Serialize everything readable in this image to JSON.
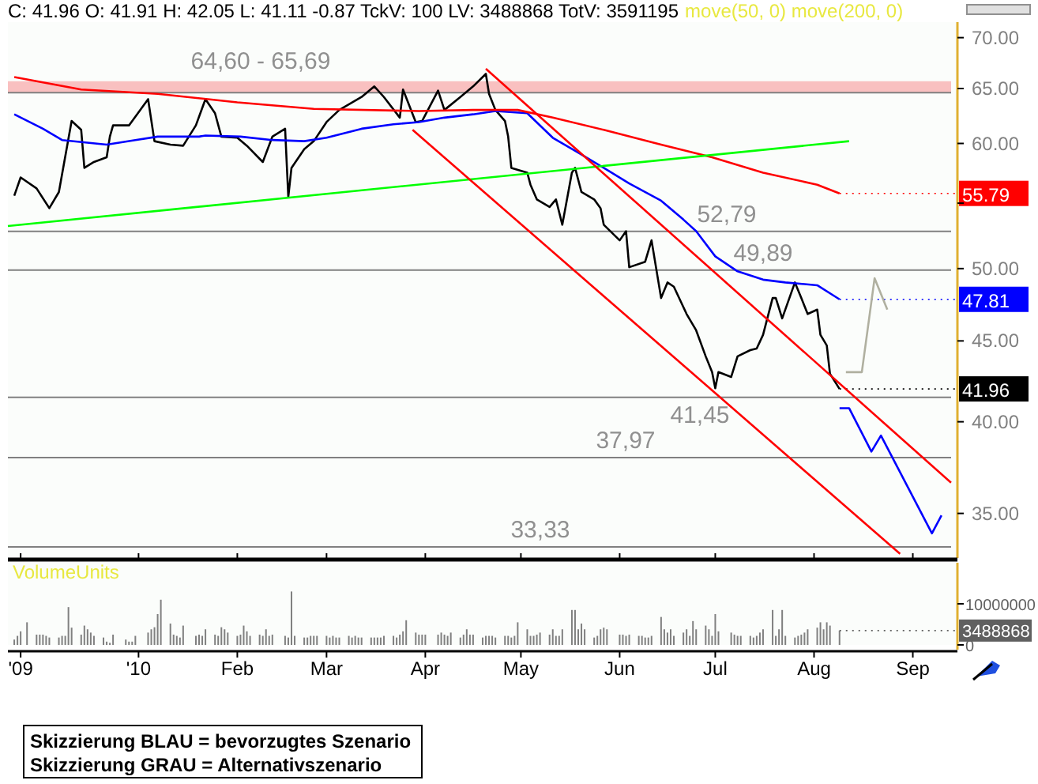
{
  "chart_data": [
    {
      "type": "line",
      "title": "C: 41.96 O: 41.91 H: 42.05 L: 41.11 -0.87 TckV: 100 LV: 3488868 TotV: 3591195",
      "annotations": [
        "move(50, 0) move(200, 0)",
        "Skizzierung BLAU = bevorzugtes Szenario",
        "Skizzierung GRAU = Alternativszenario"
      ],
      "log": "y",
      "xlim": [
        "2009-11-21",
        "2010-09-15"
      ],
      "ylim": [
        32.8,
        71.6
      ],
      "yticks": [
        {
          "value": 35,
          "label": "35.00"
        },
        {
          "value": 40,
          "label": "40.00"
        },
        {
          "value": 45,
          "label": "45.00"
        },
        {
          "value": 50,
          "label": "50.00"
        },
        {
          "value": 55,
          "label": null
        },
        {
          "value": 60,
          "label": "60.00"
        },
        {
          "value": 65,
          "label": "65.00"
        },
        {
          "value": 70,
          "label": "70.00"
        }
      ],
      "tick_labels": "y",
      "xticks": [
        {
          "value": "2009-11-25",
          "label": null
        },
        {
          "value": "2010-01-01",
          "label": null
        },
        {
          "value": "2010-02-01",
          "label": null
        },
        {
          "value": "2010-03-01",
          "label": null
        },
        {
          "value": "2010-04-01",
          "label": null
        },
        {
          "value": "2010-05-01",
          "label": null
        },
        {
          "value": "2010-06-01",
          "label": null
        },
        {
          "value": "2010-07-01",
          "label": null
        },
        {
          "value": "2010-08-01",
          "label": null
        },
        {
          "value": "2010-09-01",
          "label": null
        }
      ],
      "bands": [
        {
          "axis": "y",
          "from": 64.6,
          "to": 65.69,
          "label": "64,60 - 65,69",
          "color": "#f9c0c0"
        }
      ],
      "ref_lines": [
        {
          "axis": "y",
          "value": 52.79,
          "label": "52,79",
          "color": "#808080"
        },
        {
          "axis": "y",
          "value": 49.89,
          "label": "49,89",
          "color": "#808080"
        },
        {
          "axis": "y",
          "value": 41.45,
          "label": "41,45",
          "color": "#808080"
        },
        {
          "axis": "y",
          "value": 37.97,
          "label": "37,97",
          "color": "#808080"
        },
        {
          "axis": "y",
          "value": 33.33,
          "label": "33,33",
          "color": "#808080"
        },
        {
          "axis": "y",
          "value": 64.6,
          "color": "#808080"
        }
      ],
      "series": [
        {
          "color": "#000000",
          "x": [
            "2009-11-23",
            "2009-11-25",
            "2009-11-30",
            "2009-12-04",
            "2009-12-07",
            "2009-12-11",
            "2009-12-14",
            "2009-12-15",
            "2009-12-18",
            "2009-12-22",
            "2009-12-23",
            "2009-12-24",
            "2009-12-29",
            "2010-01-04",
            "2010-01-06",
            "2010-01-11",
            "2010-01-15",
            "2010-01-19",
            "2010-01-22",
            "2010-01-25",
            "2010-01-27",
            "2010-02-01",
            "2010-02-04",
            "2010-02-09",
            "2010-02-12",
            "2010-02-16",
            "2010-02-17",
            "2010-02-18",
            "2010-02-22",
            "2010-02-25",
            "2010-03-01",
            "2010-03-05",
            "2010-03-12",
            "2010-03-16",
            "2010-03-19",
            "2010-03-24",
            "2010-03-25",
            "2010-03-29",
            "2010-03-31",
            "2010-04-05",
            "2010-04-07",
            "2010-04-12",
            "2010-04-16",
            "2010-04-20",
            "2010-04-21",
            "2010-04-23",
            "2010-04-26",
            "2010-04-27",
            "2010-04-28",
            "2010-05-03",
            "2010-05-04",
            "2010-05-06",
            "2010-05-10",
            "2010-05-12",
            "2010-05-14",
            "2010-05-17",
            "2010-05-18",
            "2010-05-20",
            "2010-05-24",
            "2010-05-26",
            "2010-05-27",
            "2010-06-01",
            "2010-06-03",
            "2010-06-04",
            "2010-06-09",
            "2010-06-11",
            "2010-06-14",
            "2010-06-16",
            "2010-06-18",
            "2010-06-22",
            "2010-06-25",
            "2010-06-28",
            "2010-06-30",
            "2010-07-01",
            "2010-07-02",
            "2010-07-06",
            "2010-07-08",
            "2010-07-12",
            "2010-07-14",
            "2010-07-16",
            "2010-07-19",
            "2010-07-20",
            "2010-07-22",
            "2010-07-26",
            "2010-07-28",
            "2010-07-30",
            "2010-08-02",
            "2010-08-03",
            "2010-08-05",
            "2010-08-06",
            "2010-08-09"
          ],
          "values": [
            55.6,
            57.1,
            56.2,
            54.6,
            55.9,
            62.0,
            61.2,
            57.9,
            58.4,
            58.8,
            60.6,
            61.6,
            61.6,
            64.0,
            60.2,
            59.9,
            59.8,
            61.6,
            64.0,
            62.7,
            60.6,
            60.5,
            59.8,
            58.4,
            60.6,
            61.3,
            55.5,
            57.9,
            59.5,
            60.2,
            61.9,
            63.0,
            64.2,
            65.2,
            64.2,
            62.3,
            64.9,
            61.9,
            62.0,
            64.8,
            63.0,
            64.2,
            65.2,
            66.4,
            64.5,
            63.0,
            62.0,
            60.6,
            57.9,
            57.5,
            56.5,
            55.3,
            54.7,
            55.3,
            53.3,
            57.5,
            57.9,
            55.9,
            55.3,
            54.6,
            53.3,
            52.1,
            52.8,
            50.1,
            50.5,
            52.1,
            47.9,
            49.0,
            48.7,
            46.8,
            45.7,
            44.0,
            43.0,
            42.0,
            43.0,
            42.7,
            44.0,
            44.4,
            44.5,
            45.4,
            47.9,
            47.9,
            46.5,
            49.0,
            47.9,
            46.8,
            47.1,
            45.4,
            44.7,
            42.9,
            41.96
          ],
          "value_labels": [
            null,
            null,
            null,
            null,
            null,
            null,
            null,
            null,
            null,
            null,
            null,
            null,
            null,
            null,
            null,
            null,
            null,
            null,
            null,
            null,
            null,
            null,
            null,
            null,
            null,
            null,
            null,
            null,
            null,
            null,
            null,
            null,
            null,
            null,
            null,
            null,
            null,
            null,
            null,
            null,
            null,
            null,
            null,
            null,
            null,
            null,
            null,
            null,
            null,
            null,
            null,
            null,
            null,
            null,
            null,
            null,
            null,
            null,
            null,
            null,
            null,
            null,
            null,
            null,
            null,
            null,
            null,
            null,
            null,
            null,
            null,
            null,
            null,
            null,
            null,
            null,
            null,
            null,
            null,
            null,
            null,
            null,
            null,
            null,
            null,
            null,
            null,
            null,
            null,
            null,
            "41.96"
          ]
        },
        {
          "color": "#0000ff",
          "x": [
            "2009-11-23",
            "2009-12-02",
            "2009-12-08",
            "2009-12-22",
            "2009-12-31",
            "2010-01-07",
            "2010-01-20",
            "2010-01-22",
            "2010-02-02",
            "2010-02-12",
            "2010-02-22",
            "2010-03-01",
            "2010-03-12",
            "2010-03-22",
            "2010-03-30",
            "2010-04-07",
            "2010-04-16",
            "2010-04-23",
            "2010-05-03",
            "2010-05-11",
            "2010-05-19",
            "2010-05-27",
            "2010-06-04",
            "2010-06-14",
            "2010-06-21",
            "2010-06-25",
            "2010-07-01",
            "2010-07-08",
            "2010-07-16",
            "2010-07-23",
            "2010-08-02",
            "2010-08-09"
          ],
          "values": [
            62.6,
            61.3,
            60.3,
            59.9,
            60.3,
            60.6,
            60.6,
            60.7,
            60.6,
            60.3,
            60.2,
            60.5,
            61.3,
            61.7,
            61.9,
            62.3,
            62.6,
            62.9,
            62.7,
            60.5,
            59.2,
            57.9,
            56.6,
            55.2,
            53.7,
            52.8,
            50.9,
            49.8,
            49.2,
            49.0,
            48.8,
            47.81
          ],
          "value_labels": [
            null,
            null,
            null,
            null,
            null,
            null,
            null,
            null,
            null,
            null,
            null,
            null,
            null,
            null,
            null,
            null,
            null,
            null,
            null,
            null,
            null,
            null,
            null,
            null,
            null,
            null,
            null,
            null,
            null,
            null,
            null,
            "47.81"
          ]
        },
        {
          "color": "#ff0000",
          "x": [
            "2009-11-23",
            "2009-12-14",
            "2010-01-07",
            "2010-02-01",
            "2010-02-25",
            "2010-03-30",
            "2010-04-16",
            "2010-04-30",
            "2010-05-11",
            "2010-05-27",
            "2010-06-14",
            "2010-06-30",
            "2010-07-16",
            "2010-08-02",
            "2010-08-09"
          ],
          "values": [
            66.1,
            64.9,
            64.5,
            63.7,
            63.1,
            62.9,
            63.0,
            63.0,
            62.3,
            61.2,
            59.9,
            58.8,
            57.5,
            56.5,
            55.79
          ],
          "value_labels": [
            null,
            null,
            null,
            null,
            null,
            null,
            null,
            null,
            null,
            null,
            null,
            null,
            null,
            null,
            "55.79"
          ]
        },
        {
          "color": "#00ff00",
          "x": [
            "2009-11-21",
            "2010-08-12"
          ],
          "values": [
            53.2,
            60.2
          ]
        },
        {
          "color": "#ff0000",
          "x": [
            "2010-04-20",
            "2010-09-13"
          ],
          "values": [
            66.9,
            36.6
          ]
        },
        {
          "color": "#ff0000",
          "x": [
            "2010-03-28",
            "2010-08-28"
          ],
          "values": [
            61.2,
            33.0
          ]
        },
        {
          "color": "#0000ff",
          "x": [
            "2010-08-09",
            "2010-08-12",
            "2010-08-19",
            "2010-08-22",
            "2010-09-07",
            "2010-09-10"
          ],
          "values": [
            40.8,
            40.8,
            38.3,
            39.2,
            34.0,
            34.9
          ]
        },
        {
          "color": "#b0b0a0",
          "x": [
            "2010-08-11",
            "2010-08-16",
            "2010-08-20",
            "2010-08-24"
          ],
          "values": [
            43.0,
            43.0,
            49.3,
            47.1
          ]
        }
      ]
    },
    {
      "type": "bar",
      "title": "VolumeUnits",
      "color": "#808080",
      "xlim": [
        "2009-11-21",
        "2010-09-15"
      ],
      "xticks": [
        {
          "value": "2009-11-25",
          "label": "'09"
        },
        {
          "value": "2010-01-01",
          "label": "'10"
        },
        {
          "value": "2010-02-01",
          "label": "Feb"
        },
        {
          "value": "2010-03-01",
          "label": "Mar"
        },
        {
          "value": "2010-04-01",
          "label": "Apr"
        },
        {
          "value": "2010-05-01",
          "label": "May"
        },
        {
          "value": "2010-06-01",
          "label": "Jun"
        },
        {
          "value": "2010-07-01",
          "label": "Jul"
        },
        {
          "value": "2010-08-01",
          "label": "Aug"
        },
        {
          "value": "2010-09-01",
          "label": "Sep"
        }
      ],
      "ylim": [
        0,
        20000000
      ],
      "yticks": [
        0,
        10000000
      ],
      "value_labels": [
        null,
        null,
        null,
        null,
        null,
        null,
        null,
        null,
        null,
        null,
        null,
        null,
        null,
        null,
        null,
        null,
        null,
        null,
        null,
        null,
        null,
        null,
        null,
        null,
        null,
        null,
        null,
        null,
        null,
        null,
        null,
        null,
        null,
        null,
        null,
        null,
        null,
        null,
        null,
        null,
        null,
        null,
        null,
        null,
        null,
        null,
        null,
        null,
        null,
        null,
        null,
        null,
        null,
        null,
        null,
        null,
        null,
        null,
        null,
        null,
        null,
        null,
        null,
        null,
        null,
        null,
        null,
        null,
        null,
        null,
        null,
        null,
        null,
        null,
        null,
        null,
        null,
        null,
        null,
        null,
        null,
        null,
        null,
        null,
        null,
        null,
        null,
        null,
        null,
        null,
        null,
        null,
        null,
        null,
        null,
        null,
        null,
        null,
        null,
        null,
        null,
        null,
        null,
        null,
        null,
        null,
        null,
        null,
        null,
        null,
        null,
        null,
        null,
        null,
        null,
        null,
        null,
        null,
        null,
        null,
        null,
        null,
        null,
        null,
        null,
        null,
        null,
        null,
        null,
        null,
        null,
        null,
        null,
        null,
        null,
        null,
        null,
        null,
        null,
        null,
        null,
        null,
        null,
        null,
        null,
        null,
        null,
        null,
        null,
        null,
        null,
        null,
        null,
        null,
        null,
        null,
        null,
        null,
        null,
        null,
        null,
        null,
        null,
        null,
        null,
        null,
        null,
        null,
        null,
        null,
        null,
        null,
        null,
        null,
        null,
        null,
        null,
        "3488868"
      ],
      "x": [
        "2009-11-23",
        "2009-11-24",
        "2009-11-25",
        "2009-11-27",
        "2009-11-30",
        "2009-12-01",
        "2009-12-02",
        "2009-12-03",
        "2009-12-04",
        "2009-12-07",
        "2009-12-08",
        "2009-12-09",
        "2009-12-10",
        "2009-12-11",
        "2009-12-14",
        "2009-12-15",
        "2009-12-16",
        "2009-12-17",
        "2009-12-18",
        "2009-12-21",
        "2009-12-22",
        "2009-12-23",
        "2009-12-24",
        "2009-12-28",
        "2009-12-29",
        "2009-12-30",
        "2009-12-31",
        "2010-01-04",
        "2010-01-05",
        "2010-01-06",
        "2010-01-07",
        "2010-01-08",
        "2010-01-11",
        "2010-01-12",
        "2010-01-13",
        "2010-01-14",
        "2010-01-15",
        "2010-01-19",
        "2010-01-20",
        "2010-01-21",
        "2010-01-22",
        "2010-01-25",
        "2010-01-26",
        "2010-01-27",
        "2010-01-28",
        "2010-01-29",
        "2010-02-01",
        "2010-02-02",
        "2010-02-03",
        "2010-02-04",
        "2010-02-05",
        "2010-02-08",
        "2010-02-09",
        "2010-02-10",
        "2010-02-11",
        "2010-02-12",
        "2010-02-16",
        "2010-02-17",
        "2010-02-18",
        "2010-02-19",
        "2010-02-22",
        "2010-02-23",
        "2010-02-24",
        "2010-02-25",
        "2010-02-26",
        "2010-03-01",
        "2010-03-02",
        "2010-03-03",
        "2010-03-04",
        "2010-03-05",
        "2010-03-08",
        "2010-03-09",
        "2010-03-10",
        "2010-03-11",
        "2010-03-12",
        "2010-03-15",
        "2010-03-16",
        "2010-03-17",
        "2010-03-18",
        "2010-03-19",
        "2010-03-22",
        "2010-03-23",
        "2010-03-24",
        "2010-03-25",
        "2010-03-26",
        "2010-03-29",
        "2010-03-30",
        "2010-03-31",
        "2010-04-01",
        "2010-04-05",
        "2010-04-06",
        "2010-04-07",
        "2010-04-08",
        "2010-04-09",
        "2010-04-12",
        "2010-04-13",
        "2010-04-14",
        "2010-04-15",
        "2010-04-16",
        "2010-04-19",
        "2010-04-20",
        "2010-04-21",
        "2010-04-22",
        "2010-04-23",
        "2010-04-26",
        "2010-04-27",
        "2010-04-28",
        "2010-04-29",
        "2010-04-30",
        "2010-05-03",
        "2010-05-04",
        "2010-05-05",
        "2010-05-06",
        "2010-05-07",
        "2010-05-10",
        "2010-05-11",
        "2010-05-12",
        "2010-05-13",
        "2010-05-14",
        "2010-05-17",
        "2010-05-18",
        "2010-05-19",
        "2010-05-20",
        "2010-05-21",
        "2010-05-24",
        "2010-05-25",
        "2010-05-26",
        "2010-05-27",
        "2010-05-28",
        "2010-06-01",
        "2010-06-02",
        "2010-06-03",
        "2010-06-04",
        "2010-06-07",
        "2010-06-08",
        "2010-06-09",
        "2010-06-10",
        "2010-06-11",
        "2010-06-14",
        "2010-06-15",
        "2010-06-16",
        "2010-06-17",
        "2010-06-18",
        "2010-06-21",
        "2010-06-22",
        "2010-06-23",
        "2010-06-24",
        "2010-06-25",
        "2010-06-28",
        "2010-06-29",
        "2010-06-30",
        "2010-07-01",
        "2010-07-02",
        "2010-07-06",
        "2010-07-07",
        "2010-07-08",
        "2010-07-09",
        "2010-07-12",
        "2010-07-13",
        "2010-07-14",
        "2010-07-15",
        "2010-07-16",
        "2010-07-19",
        "2010-07-20",
        "2010-07-21",
        "2010-07-22",
        "2010-07-23",
        "2010-07-26",
        "2010-07-27",
        "2010-07-28",
        "2010-07-29",
        "2010-07-30",
        "2010-08-02",
        "2010-08-03",
        "2010-08-04",
        "2010-08-05",
        "2010-08-06",
        "2010-08-09"
      ],
      "values": [
        1300000,
        2200000,
        3300000,
        5500000,
        2500000,
        2500000,
        2500000,
        2200000,
        1800000,
        1800000,
        2200000,
        2200000,
        9200000,
        4200000,
        2500000,
        4700000,
        3800000,
        3000000,
        2200000,
        1800000,
        800000,
        500000,
        2500000,
        1300000,
        800000,
        800000,
        2200000,
        3000000,
        3800000,
        4300000,
        7500000,
        11000000,
        5200000,
        2500000,
        2200000,
        1800000,
        4700000,
        2200000,
        2500000,
        2200000,
        3800000,
        2500000,
        2200000,
        4300000,
        3800000,
        3000000,
        2200000,
        2500000,
        4700000,
        3300000,
        2200000,
        2500000,
        2200000,
        3800000,
        2200000,
        2500000,
        2200000,
        1800000,
        13000000,
        2200000,
        1800000,
        1800000,
        2200000,
        2200000,
        2200000,
        2200000,
        1800000,
        2200000,
        1800000,
        1800000,
        2200000,
        1800000,
        2200000,
        1800000,
        1800000,
        1800000,
        1800000,
        1800000,
        1800000,
        2200000,
        2200000,
        1800000,
        2500000,
        3300000,
        6000000,
        3000000,
        2500000,
        2500000,
        2500000,
        2500000,
        3000000,
        2500000,
        2200000,
        3000000,
        1800000,
        2500000,
        3800000,
        2500000,
        2500000,
        1800000,
        2200000,
        2200000,
        2200000,
        1800000,
        2200000,
        2200000,
        1800000,
        2200000,
        5500000,
        3800000,
        2200000,
        2200000,
        2500000,
        3000000,
        2500000,
        3800000,
        2200000,
        2200000,
        3800000,
        8500000,
        8500000,
        3800000,
        5200000,
        3800000,
        1800000,
        2200000,
        3800000,
        4200000,
        3800000,
        2500000,
        2500000,
        2200000,
        2500000,
        2200000,
        2200000,
        1800000,
        1800000,
        2200000,
        6800000,
        3800000,
        3000000,
        3800000,
        2200000,
        3000000,
        3800000,
        2200000,
        5800000,
        3800000,
        4700000,
        3800000,
        2200000,
        7500000,
        3300000,
        3000000,
        2500000,
        2200000,
        2200000,
        2200000,
        1800000,
        2200000,
        3000000,
        3800000,
        8500000,
        2200000,
        3800000,
        8500000,
        2200000,
        1800000,
        2200000,
        2500000,
        3000000,
        3800000,
        4200000,
        5500000,
        3800000,
        5500000,
        4700000,
        3488868
      ]
    }
  ]
}
